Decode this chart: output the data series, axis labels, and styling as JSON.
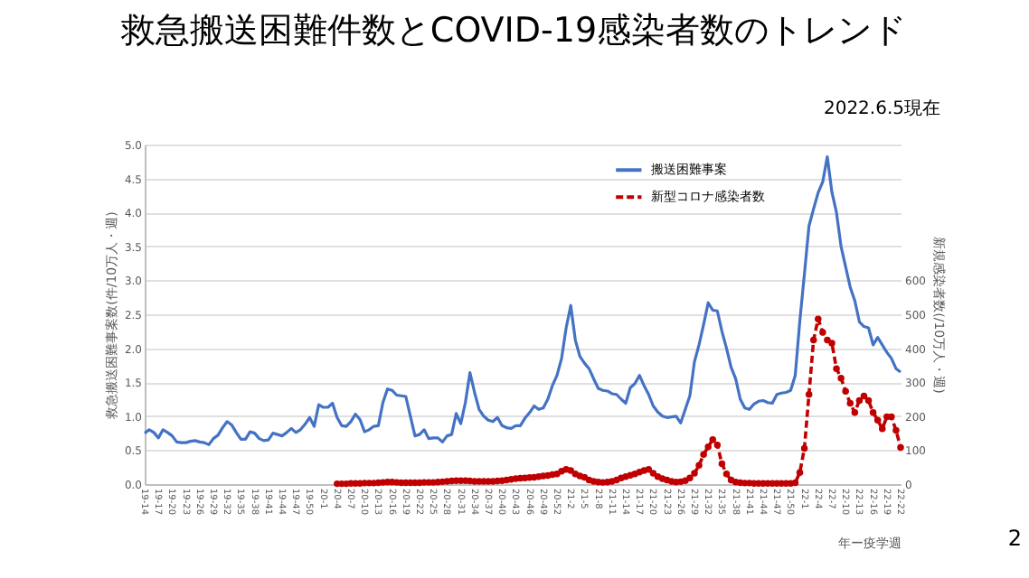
{
  "chart_data": {
    "type": "line",
    "title": "救急搬送困難件数とCOVID-19感染者数のトレンド",
    "subtitle": "2022.6.5現在",
    "xlabel": "年ー疫学週",
    "ylabel": "救急搬送困難事案数(件/10万人・週)",
    "y2label": "新規感染者数(/10万人・週)",
    "annotations": [
      "2"
    ],
    "categories": [
      "19-14",
      null,
      null,
      "19-17",
      null,
      null,
      "19-20",
      null,
      null,
      "19-23",
      null,
      null,
      "19-26",
      null,
      null,
      "19-29",
      null,
      null,
      "19-32",
      null,
      null,
      "19-35",
      null,
      null,
      "19-38",
      null,
      null,
      "19-41",
      null,
      null,
      "19-44",
      null,
      null,
      "19-47",
      null,
      null,
      "19-50",
      null,
      null,
      "20-1",
      null,
      null,
      "20-4",
      null,
      null,
      "20-7",
      null,
      null,
      "20-10",
      null,
      null,
      "20-13",
      null,
      null,
      "20-16",
      null,
      null,
      "20-19",
      null,
      null,
      "20-22",
      null,
      null,
      "20-25",
      null,
      null,
      "20-28",
      null,
      null,
      "20-31",
      null,
      null,
      "20-34",
      null,
      null,
      "20-37",
      null,
      null,
      "20-40",
      null,
      null,
      "20-43",
      null,
      null,
      "20-46",
      null,
      null,
      "20-49",
      null,
      null,
      "20-52",
      null,
      null,
      "21-2",
      null,
      null,
      "21-5",
      null,
      null,
      "21-8",
      null,
      null,
      "21-11",
      null,
      null,
      "21-14",
      null,
      null,
      "21-17",
      null,
      null,
      "21-20",
      null,
      null,
      "21-23",
      null,
      null,
      "21-26",
      null,
      null,
      "21-29",
      null,
      null,
      "21-32",
      null,
      null,
      "21-35",
      null,
      null,
      "21-38",
      null,
      null,
      "21-41",
      null,
      null,
      "21-44",
      null,
      null,
      "21-47",
      null,
      null,
      "21-50",
      null,
      null,
      "22-1",
      null,
      null,
      "22-4",
      null,
      null,
      "22-7",
      null,
      null,
      "22-10",
      null,
      null,
      "22-13",
      null,
      null,
      "22-16",
      null,
      null,
      "22-19",
      null,
      null,
      "22-22"
    ],
    "series": [
      {
        "name": "搬送困難事案",
        "color": "#4472c4",
        "marker": "none",
        "line_style": "solid",
        "values": [
          0.75,
          0.8,
          0.76,
          0.68,
          0.8,
          0.76,
          0.71,
          0.62,
          0.61,
          0.61,
          0.63,
          0.64,
          0.62,
          0.61,
          0.58,
          0.67,
          0.72,
          0.83,
          0.92,
          0.87,
          0.76,
          0.66,
          0.66,
          0.77,
          0.75,
          0.67,
          0.64,
          0.65,
          0.75,
          0.73,
          0.71,
          0.76,
          0.82,
          0.76,
          0.8,
          0.88,
          0.98,
          0.85,
          1.17,
          1.13,
          1.13,
          1.19,
          0.98,
          0.86,
          0.85,
          0.92,
          1.03,
          0.95,
          0.77,
          0.8,
          0.85,
          0.86,
          1.2,
          1.4,
          1.38,
          1.31,
          1.3,
          1.29,
          1.0,
          0.71,
          0.73,
          0.8,
          0.67,
          0.68,
          0.68,
          0.62,
          0.71,
          0.73,
          1.04,
          0.89,
          1.2,
          1.64,
          1.35,
          1.1,
          1.0,
          0.94,
          0.92,
          0.98,
          0.86,
          0.83,
          0.82,
          0.86,
          0.86,
          0.97,
          1.05,
          1.15,
          1.1,
          1.12,
          1.25,
          1.45,
          1.6,
          1.85,
          2.3,
          2.63,
          2.12,
          1.88,
          1.78,
          1.7,
          1.55,
          1.41,
          1.38,
          1.37,
          1.33,
          1.32,
          1.25,
          1.19,
          1.42,
          1.48,
          1.6,
          1.45,
          1.32,
          1.15,
          1.06,
          1.0,
          0.98,
          0.99,
          1.0,
          0.9,
          1.1,
          1.3,
          1.8,
          2.05,
          2.35,
          2.67,
          2.56,
          2.55,
          2.25,
          2.0,
          1.72,
          1.55,
          1.25,
          1.12,
          1.1,
          1.18,
          1.22,
          1.23,
          1.2,
          1.19,
          1.32,
          1.34,
          1.35,
          1.38,
          1.6,
          2.4,
          3.09,
          3.8,
          4.05,
          4.29,
          4.45,
          4.82,
          4.3,
          4.0,
          3.5,
          3.2,
          2.9,
          2.7,
          2.39,
          2.32,
          2.3,
          2.05,
          2.16,
          2.05,
          1.94,
          1.85,
          1.7,
          1.65
        ]
      },
      {
        "name": "新型コロナ感染者数",
        "color": "#c00000",
        "axis": "y2",
        "marker": "circle",
        "line_style": "dashed",
        "values": [
          null,
          null,
          null,
          null,
          null,
          null,
          null,
          null,
          null,
          null,
          null,
          null,
          null,
          null,
          null,
          null,
          null,
          null,
          null,
          null,
          null,
          null,
          null,
          null,
          null,
          null,
          null,
          null,
          null,
          null,
          null,
          null,
          null,
          null,
          null,
          null,
          null,
          null,
          null,
          null,
          null,
          null,
          1,
          1,
          1,
          2,
          2,
          2,
          3,
          3,
          3,
          4,
          5,
          6,
          6,
          5,
          4,
          4,
          4,
          4,
          4,
          5,
          5,
          5,
          6,
          7,
          8,
          9,
          10,
          10,
          10,
          9,
          8,
          8,
          8,
          8,
          8,
          9,
          10,
          12,
          14,
          16,
          17,
          18,
          19,
          20,
          22,
          24,
          25,
          28,
          30,
          38,
          43,
          40,
          30,
          24,
          20,
          12,
          8,
          6,
          5,
          6,
          8,
          12,
          18,
          22,
          26,
          30,
          35,
          40,
          43,
          32,
          22,
          16,
          12,
          8,
          6,
          7,
          10,
          18,
          32,
          55,
          87,
          110,
          131,
          115,
          60,
          30,
          12,
          6,
          4,
          3,
          3,
          2,
          2,
          2,
          2,
          2,
          2,
          2,
          2,
          2,
          4,
          34,
          105,
          264,
          424,
          486,
          447,
          424,
          415,
          340,
          312,
          273,
          238,
          211,
          246,
          259,
          246,
          211,
          188,
          163,
          198,
          198,
          158,
          108
        ]
      }
    ],
    "ylim": [
      0,
      5
    ],
    "yticks": [
      {
        "value": 0,
        "label": "0.0"
      },
      0.5,
      {
        "value": 1,
        "label": "1.0"
      },
      1.5,
      {
        "value": 2,
        "label": "2.0"
      },
      2.5,
      {
        "value": 3,
        "label": "3.0"
      },
      3.5,
      {
        "value": 4,
        "label": "4.0"
      },
      4.5,
      {
        "value": 5,
        "label": "5.0"
      }
    ],
    "y2lim": [
      0,
      1000
    ],
    "y2ticks": [
      0,
      100,
      200,
      300,
      400,
      500,
      600
    ],
    "grid": "y",
    "legend": "top right"
  }
}
